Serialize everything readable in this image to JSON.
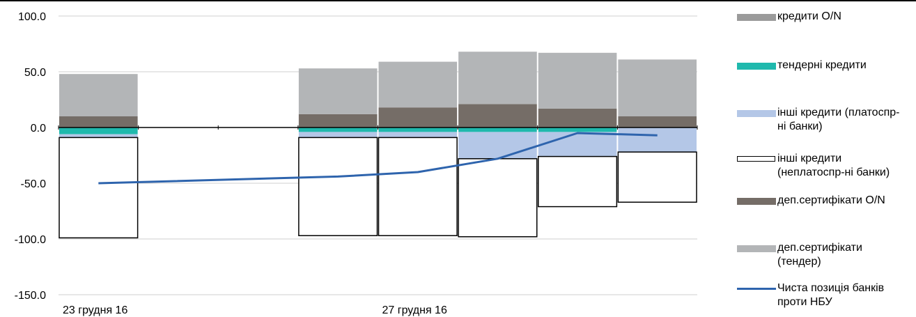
{
  "chart_data": {
    "type": "bar",
    "stacked": true,
    "title": "",
    "xlabel": "",
    "ylabel": "",
    "ylim": [
      -150,
      100
    ],
    "yticks": [
      100,
      50,
      0,
      -50,
      -100,
      -150
    ],
    "ytick_labels": [
      "100.0",
      "50.0",
      "0.0",
      "-50.0",
      "-100.0",
      "-150.0"
    ],
    "grid": "horizontal",
    "legend_position": "right",
    "bar_slots": 8,
    "x_labels": [
      {
        "slot": 0,
        "text": "23 грудня 16"
      },
      {
        "slot": 4,
        "text": "27 грудня 16"
      }
    ],
    "series": [
      {
        "name": "кредити O/N",
        "kind": "bar",
        "color": "#9b9b9b",
        "values": [
          0,
          null,
          null,
          0,
          0,
          0,
          0,
          0
        ]
      },
      {
        "name": "тендерні кредити",
        "kind": "bar",
        "color": "#1fb9ad",
        "values": [
          -6,
          null,
          null,
          -4,
          -4,
          -4,
          -4,
          0
        ]
      },
      {
        "name": "інші кредити (платоспр-ні банки)",
        "kind": "bar",
        "color": "#b4c7e7",
        "values": [
          -3,
          null,
          null,
          -5,
          -5,
          -24,
          -22,
          -22
        ]
      },
      {
        "name": "інші кредити (неплатоспр-ні банки)",
        "kind": "bar",
        "color": "#ffffff",
        "outline": "#000000",
        "values": [
          -90,
          null,
          null,
          -88,
          -88,
          -70,
          -45,
          -45
        ]
      },
      {
        "name": "деп.сертифікати O/N",
        "kind": "bar",
        "color": "#756d67",
        "values": [
          10,
          null,
          null,
          12,
          18,
          21,
          17,
          10
        ]
      },
      {
        "name": "деп.сертифікати (тендер)",
        "kind": "bar",
        "color": "#b3b5b7",
        "values": [
          38,
          null,
          null,
          41,
          41,
          47,
          50,
          51
        ]
      },
      {
        "name": "Чиста позиція банків проти НБУ",
        "kind": "line",
        "color": "#2e64ad",
        "values": [
          -50,
          null,
          null,
          -44,
          -40,
          -28,
          -5,
          -7
        ]
      }
    ]
  },
  "legend": [
    {
      "label": "кредити O/N",
      "color": "#9b9b9b",
      "kind": "bar"
    },
    {
      "label": "тендерні кредити",
      "color": "#1fb9ad",
      "kind": "bar"
    },
    {
      "label": "інші кредити (платоспр-ні банки)",
      "color": "#b4c7e7",
      "kind": "bar"
    },
    {
      "label": "інші кредити (неплатоспр-ні банки)",
      "color": "#ffffff",
      "kind": "outline"
    },
    {
      "label": "деп.сертифікати O/N",
      "color": "#756d67",
      "kind": "bar"
    },
    {
      "label": "деп.сертифікати (тендер)",
      "color": "#b3b5b7",
      "kind": "bar"
    },
    {
      "label": "Чиста позиція банків проти НБУ",
      "color": "#2e64ad",
      "kind": "line"
    }
  ]
}
